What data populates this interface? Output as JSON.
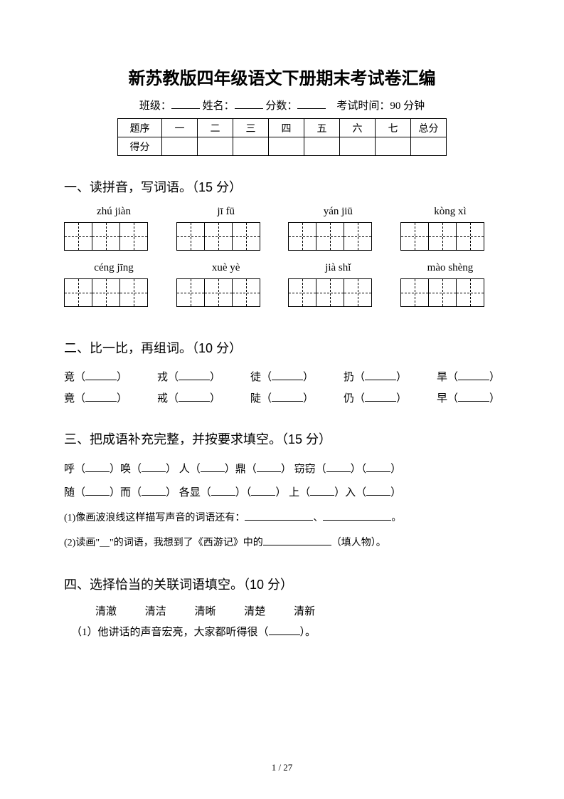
{
  "title": "新苏教版四年级语文下册期末考试卷汇编",
  "info": {
    "class_label": "班级：",
    "name_label": "姓名：",
    "score_label": "分数：",
    "time_label": "考试时间：90 分钟"
  },
  "score_table": {
    "row1_label": "题序",
    "cols": [
      "一",
      "二",
      "三",
      "四",
      "五",
      "六",
      "七",
      "总分"
    ],
    "row2_label": "得分"
  },
  "q1": {
    "heading": "一、读拼音，写词语。（15 分）",
    "items": [
      {
        "pinyin": "zhú jiàn",
        "cells": 3
      },
      {
        "pinyin": "jī fū",
        "cells": 3
      },
      {
        "pinyin": "yán jiū",
        "cells": 3
      },
      {
        "pinyin": "kòng xì",
        "cells": 3
      },
      {
        "pinyin": "céng jīng",
        "cells": 3
      },
      {
        "pinyin": "xuè yè",
        "cells": 3
      },
      {
        "pinyin": "jià shǐ",
        "cells": 3
      },
      {
        "pinyin": "mào shèng",
        "cells": 3
      }
    ]
  },
  "q2": {
    "heading": "二、比一比，再组词。（10 分）",
    "rows": [
      [
        "竞",
        "戎",
        "徒",
        "扔",
        "旱"
      ],
      [
        "竟",
        "戒",
        "陡",
        "仍",
        "早"
      ]
    ]
  },
  "q3": {
    "heading": "三、把成语补充完整，并按要求填空。（15 分）",
    "line1_parts": [
      "呼（",
      "）唤（",
      "）   人（",
      "）鼎（",
      "）   窃窃（",
      "）（",
      "）"
    ],
    "line2_parts": [
      "随（",
      "）而（",
      "）   各显（",
      "）（",
      "）   上（",
      "）入（",
      "）"
    ],
    "sub1_pre": "(1)像画波浪线这样描写声音的词语还有：",
    "sub1_sep": "、",
    "sub1_end": "。",
    "sub2_pre": "(2)读画\"＿\"的词语，我想到了《西游记》中的",
    "sub2_end": "（填人物）。"
  },
  "q4": {
    "heading": "四、选择恰当的关联词语填空。（10 分）",
    "words": [
      "清澈",
      "清洁",
      "清晰",
      "清楚",
      "清新"
    ],
    "line_pre": "（1）他讲话的声音宏亮，大家都听得很（",
    "line_post": "）。"
  },
  "page_num": "1 / 27"
}
